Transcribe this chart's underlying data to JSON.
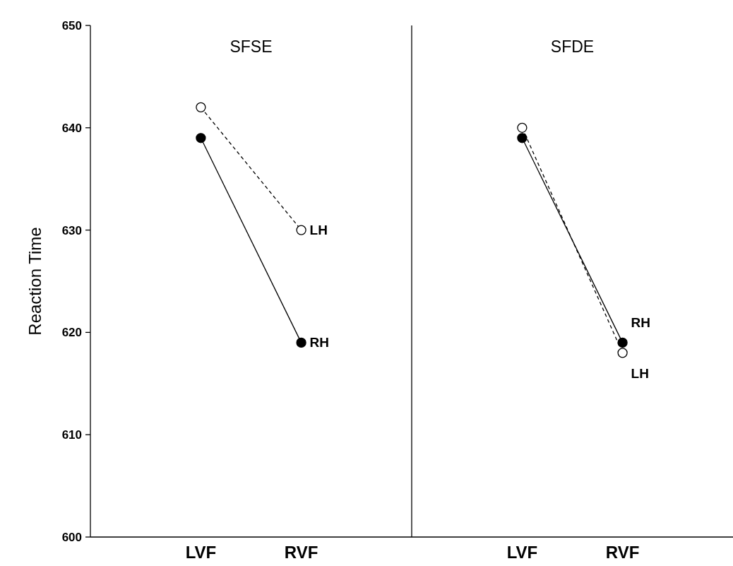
{
  "chart_data": [
    {
      "type": "line",
      "title": "SFSE",
      "ylabel": "Reaction Time",
      "categories": [
        "LVF",
        "RVF"
      ],
      "ylim": [
        600,
        650
      ],
      "yticks": [
        600,
        610,
        620,
        630,
        640,
        650
      ],
      "grid": false,
      "marker": "circle",
      "series": [
        {
          "name": "LH",
          "color": "#000000",
          "line_style": "dashed",
          "values": [
            642,
            630
          ]
        },
        {
          "name": "RH",
          "color": "#000000",
          "line_style": "solid",
          "values": [
            639,
            619
          ]
        }
      ]
    },
    {
      "type": "line",
      "title": "SFDE",
      "categories": [
        "LVF",
        "RVF"
      ],
      "ylim": [
        600,
        650
      ],
      "tick_labels": "x",
      "grid": false,
      "marker": "circle",
      "series": [
        {
          "name": "LH",
          "color": "#000000",
          "line_style": "dashed",
          "values": [
            640,
            618
          ]
        },
        {
          "name": "RH",
          "color": "#000000",
          "line_style": "solid",
          "values": [
            639,
            619
          ]
        }
      ]
    }
  ]
}
